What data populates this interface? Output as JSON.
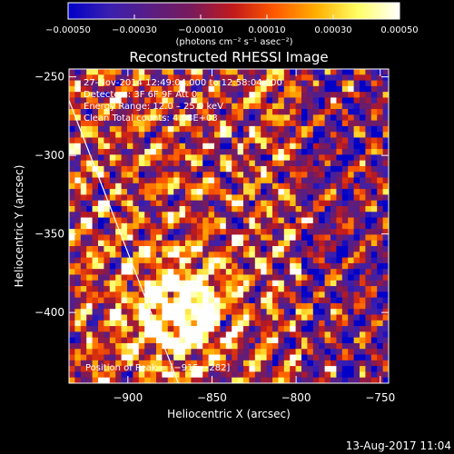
{
  "chart_data": {
    "type": "heatmap",
    "title": "Reconstructed RHESSI Image",
    "xlabel": "Heliocentric X (arcsec)",
    "ylabel": "Heliocentric Y (arcsec)",
    "xlim": [
      -935,
      -745
    ],
    "ylim": [
      -445,
      -245
    ],
    "x_ticks": [
      -900,
      -850,
      -800,
      -750
    ],
    "x_tick_labels": [
      "−900",
      "−850",
      "−800",
      "−750"
    ],
    "y_ticks": [
      -250,
      -300,
      -350,
      -400
    ],
    "y_tick_labels": [
      "−250",
      "−300",
      "−350",
      "−400"
    ],
    "colorbar": {
      "range": [
        -0.0005,
        0.0005
      ],
      "ticks": [
        -0.0005,
        -0.0003,
        -0.0001,
        0.0001,
        0.0003,
        0.0005
      ],
      "tick_labels": [
        "−0.00050",
        "−0.00030",
        "−0.00010",
        "0.00010",
        "0.00030",
        "0.00050"
      ],
      "unit_label": "(photons cm⁻² s⁻¹ asec⁻²)"
    },
    "annotations": [
      "27‑Nov‑2014 12:49:04.000 to 12:58:04.000",
      "Detectors: 3F 6F 9F Att 0",
      "Energy Range: 12.0 – 25.0 keV",
      "Clean    Total counts: 4.08E+03"
    ],
    "peak_label": "Position of Peak = [−915,−282]",
    "peak": [
      -915,
      -282
    ],
    "limb_line": [
      [
        -935,
        -265
      ],
      [
        -870,
        -445
      ]
    ],
    "source_center": [
      -870,
      -400
    ],
    "grid": false
  },
  "footer": {
    "timestamp": "13‑Aug‑2017 11:04"
  },
  "colors": {
    "background": "#000000",
    "text": "#ffffff",
    "colormap": [
      "#0000c8",
      "#3a1fb0",
      "#5a1e82",
      "#7a1a5a",
      "#c21a1a",
      "#ff5a00",
      "#ffb000",
      "#ffff66",
      "#ffffff"
    ]
  }
}
